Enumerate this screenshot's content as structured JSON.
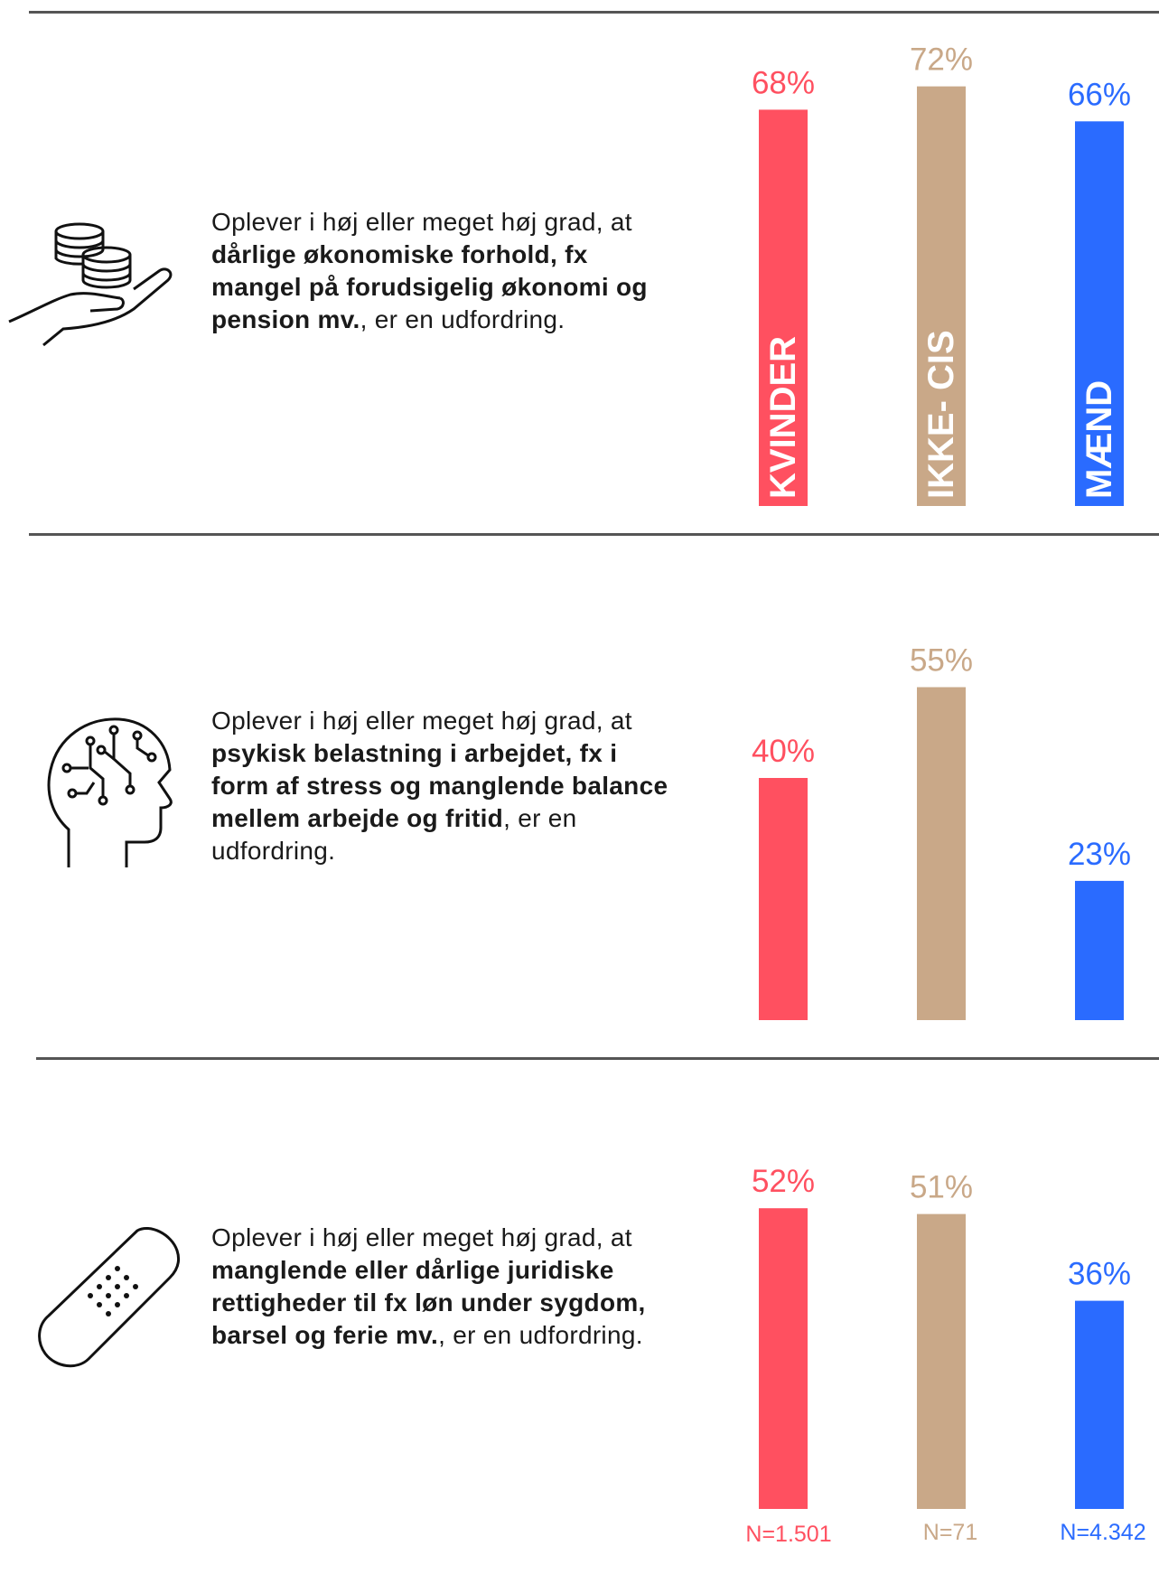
{
  "chart_data": [
    {
      "type": "bar",
      "categories": [
        "KVINDER",
        "IKKE- CIS",
        "MÆND"
      ],
      "values": [
        68,
        72,
        66
      ],
      "value_labels": [
        "68%",
        "72%",
        "66%"
      ],
      "ylim": [
        0,
        100
      ]
    },
    {
      "type": "bar",
      "categories": [
        "KVINDER",
        "IKKE- CIS",
        "MÆND"
      ],
      "values": [
        40,
        55,
        23
      ],
      "value_labels": [
        "40%",
        "55%",
        "23%"
      ],
      "ylim": [
        0,
        100
      ]
    },
    {
      "type": "bar",
      "categories": [
        "KVINDER",
        "IKKE- CIS",
        "MÆND"
      ],
      "values": [
        52,
        51,
        36
      ],
      "value_labels": [
        "52%",
        "51%",
        "36%"
      ],
      "ylim": [
        0,
        100
      ]
    }
  ],
  "colors": {
    "kvinder": "#ff5060",
    "ikke_cis": "#c9a888",
    "maend": "#2a6bff",
    "rule": "#555555"
  },
  "sections": [
    {
      "icon": "hand-coins-icon",
      "text_pre": "Oplever i høj eller meget høj grad, at ",
      "text_bold": "dårlige økonomiske forhold, fx mangel på forudsigelig økonomi og pension mv.",
      "text_post": ", er en udfordring."
    },
    {
      "icon": "brain-circuit-head-icon",
      "text_pre": "Oplever i høj eller meget høj grad, at ",
      "text_bold": "psykisk belastning i arbejdet, fx i form af stress og manglende balance mellem arbejde og fritid",
      "text_post": ", er en udfordring."
    },
    {
      "icon": "bandage-icon",
      "text_pre": "Oplever i høj eller meget høj grad, at ",
      "text_bold": "manglende eller dårlige juridiske rettigheder til fx løn under sygdom, barsel og ferie mv.",
      "text_post": ", er en udfordring."
    }
  ],
  "sample_sizes": [
    "N=1.501",
    "N=71",
    "N=4.342"
  ]
}
